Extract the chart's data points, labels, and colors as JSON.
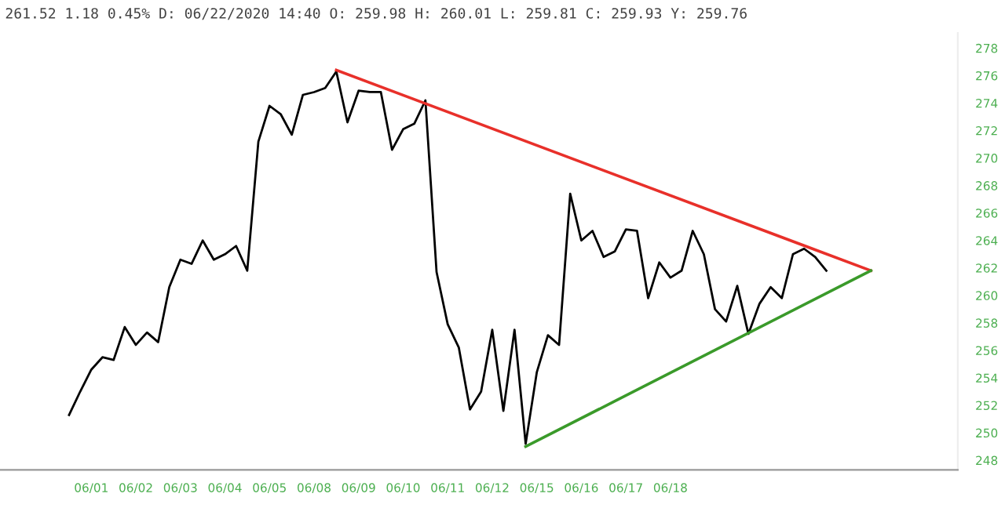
{
  "chart_data": {
    "type": "line",
    "title": "261.52 1.18 0.45% D: 06/22/2020 14:40 O: 259.98 H: 260.01 L: 259.81 C: 259.93 Y: 259.76",
    "categories": [
      null,
      null,
      "06/01",
      null,
      null,
      null,
      "06/02",
      null,
      null,
      null,
      "06/03",
      null,
      null,
      null,
      "06/04",
      null,
      null,
      null,
      "06/05",
      null,
      null,
      null,
      "06/08",
      null,
      null,
      null,
      "06/09",
      null,
      null,
      null,
      "06/10",
      null,
      null,
      null,
      "06/11",
      null,
      null,
      null,
      "06/12",
      null,
      null,
      null,
      "06/15",
      null,
      null,
      null,
      "06/16",
      null,
      null,
      null,
      "06/17",
      null,
      null,
      null,
      "06/18",
      null,
      null,
      null,
      null,
      null,
      null,
      null,
      null,
      null,
      null,
      null,
      null,
      null,
      null,
      null,
      null,
      null,
      null
    ],
    "series": [
      {
        "color": "#000000",
        "values": [
          251.3,
          253.0,
          254.6,
          255.5,
          255.3,
          257.7,
          256.4,
          257.3,
          256.6,
          260.6,
          262.6,
          262.3,
          264.0,
          262.6,
          263.0,
          263.6,
          261.8,
          271.2,
          273.8,
          273.2,
          271.7,
          274.6,
          274.8,
          275.1,
          276.3,
          272.6,
          274.9,
          274.8,
          274.8,
          270.6,
          272.1,
          272.5,
          274.2,
          261.7,
          257.9,
          256.2,
          251.7,
          253.0,
          257.5,
          251.6,
          257.5,
          249.2,
          254.4,
          257.1,
          256.4,
          267.4,
          264.0,
          264.7,
          262.8,
          263.2,
          264.8,
          264.7,
          259.8,
          262.4,
          261.3,
          261.8,
          264.7,
          263.0,
          259.0,
          258.1,
          260.7,
          257.2,
          259.4,
          260.6,
          259.8,
          263.0,
          263.4,
          262.8,
          261.8,
          null,
          null,
          null,
          null
        ]
      },
      {
        "color": "#e8302a",
        "values": [
          null,
          null,
          null,
          null,
          null,
          null,
          null,
          null,
          null,
          null,
          null,
          null,
          null,
          null,
          null,
          null,
          null,
          null,
          null,
          null,
          null,
          null,
          null,
          null,
          276.4,
          null,
          null,
          null,
          null,
          null,
          null,
          null,
          null,
          null,
          null,
          null,
          null,
          null,
          null,
          null,
          null,
          null,
          null,
          null,
          null,
          null,
          null,
          null,
          null,
          null,
          null,
          null,
          null,
          null,
          null,
          null,
          null,
          null,
          null,
          null,
          null,
          null,
          null,
          null,
          null,
          null,
          null,
          null,
          null,
          null,
          null,
          null,
          261.8
        ]
      },
      {
        "color": "#3a9a2a",
        "values": [
          null,
          null,
          null,
          null,
          null,
          null,
          null,
          null,
          null,
          null,
          null,
          null,
          null,
          null,
          null,
          null,
          null,
          null,
          null,
          null,
          null,
          null,
          null,
          null,
          null,
          null,
          null,
          null,
          null,
          null,
          null,
          null,
          null,
          null,
          null,
          null,
          null,
          null,
          null,
          null,
          null,
          249.0,
          null,
          null,
          null,
          null,
          null,
          null,
          null,
          null,
          null,
          null,
          null,
          null,
          null,
          null,
          null,
          null,
          null,
          null,
          null,
          null,
          null,
          null,
          null,
          null,
          null,
          null,
          null,
          null,
          null,
          null,
          261.8
        ]
      }
    ],
    "ylim": [
      247.3,
      279.1
    ],
    "yticks": [
      248,
      250,
      252,
      254,
      256,
      258,
      260,
      262,
      264,
      266,
      268,
      270,
      272,
      274,
      276,
      278
    ],
    "grid": false,
    "marker": "none",
    "line_style": "solid"
  }
}
